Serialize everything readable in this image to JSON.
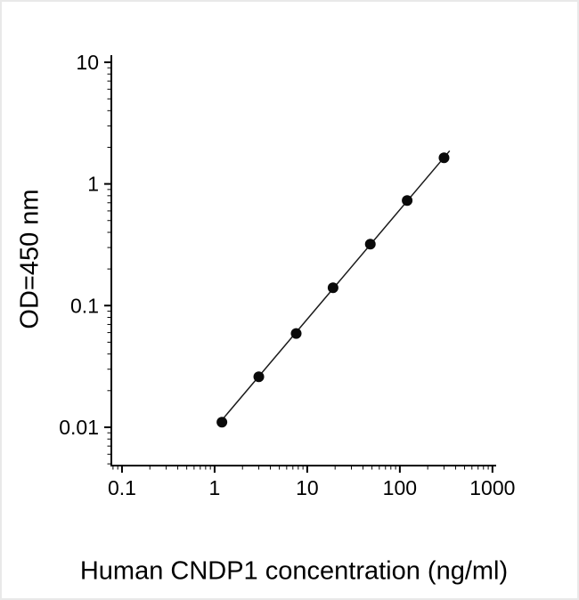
{
  "chart_data": {
    "type": "scatter",
    "title": "",
    "xlabel": "Human CNDP1 concentration (ng/ml)",
    "ylabel": "OD=450 nm",
    "x_scale": "log",
    "y_scale": "log",
    "xlim": [
      0.1,
      1000
    ],
    "ylim": [
      0.01,
      10
    ],
    "x_ticks": [
      "0.1",
      "1",
      "10",
      "100",
      "1000"
    ],
    "y_ticks": [
      "10",
      "1",
      "0.1",
      "0.01"
    ],
    "grid": false,
    "legend": false,
    "series": [
      {
        "name": "fit-line",
        "type": "line",
        "color": "#1a1a1a",
        "x": [
          1.18,
          345
        ],
        "y": [
          0.0113,
          1.87
        ]
      },
      {
        "name": "standard-points",
        "type": "scatter",
        "marker": "filled-circle",
        "color": "#0a0a0a",
        "x": [
          1.2,
          3,
          7.6,
          19,
          48,
          120,
          300
        ],
        "y": [
          0.011,
          0.026,
          0.059,
          0.14,
          0.32,
          0.73,
          1.64
        ]
      }
    ]
  },
  "colors": {
    "background": "#ffffff",
    "axis": "#000000",
    "text": "#000000"
  }
}
